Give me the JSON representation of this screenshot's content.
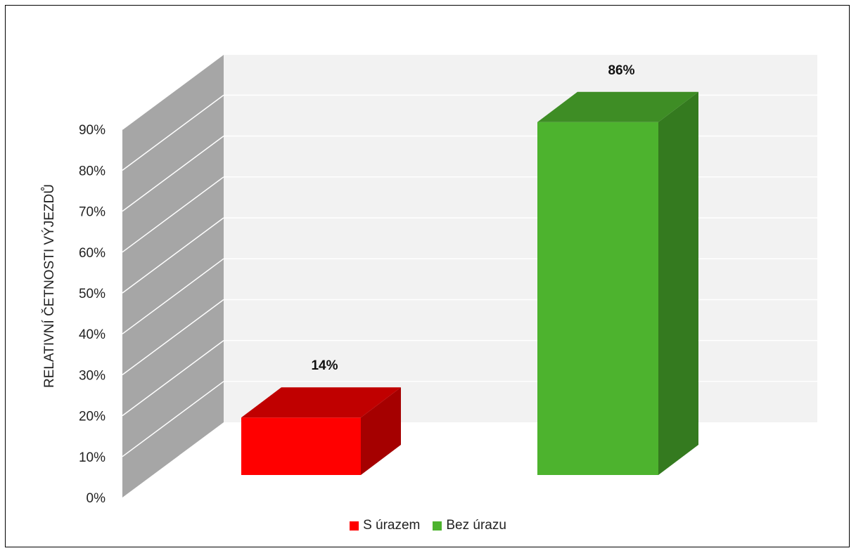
{
  "chart_data": {
    "type": "bar",
    "three_d": true,
    "ylabel": "RELATIVNÍ ČETNOSTI VÝJEZDŮ",
    "xlabel": "",
    "ylim": [
      0,
      90
    ],
    "yticks": [
      "0%",
      "10%",
      "20%",
      "30%",
      "40%",
      "50%",
      "60%",
      "70%",
      "80%",
      "90%"
    ],
    "categories": [
      "S úrazem",
      "Bez úrazu"
    ],
    "values": [
      14,
      86
    ],
    "data_labels": [
      "14%",
      "86%"
    ],
    "series": [
      {
        "name": "S úrazem",
        "value": 14,
        "color": "#ff0000",
        "side_color": "#a50000",
        "top_color": "#c00000"
      },
      {
        "name": "Bez úrazu",
        "value": 86,
        "color": "#4db32e",
        "side_color": "#347a1f",
        "top_color": "#3e8d25"
      }
    ],
    "grid": true,
    "legend_position": "bottom"
  },
  "colors": {
    "wall_back": "#f2f2f2",
    "wall_side": "#a6a6a6",
    "gridline": "#ffffff"
  }
}
